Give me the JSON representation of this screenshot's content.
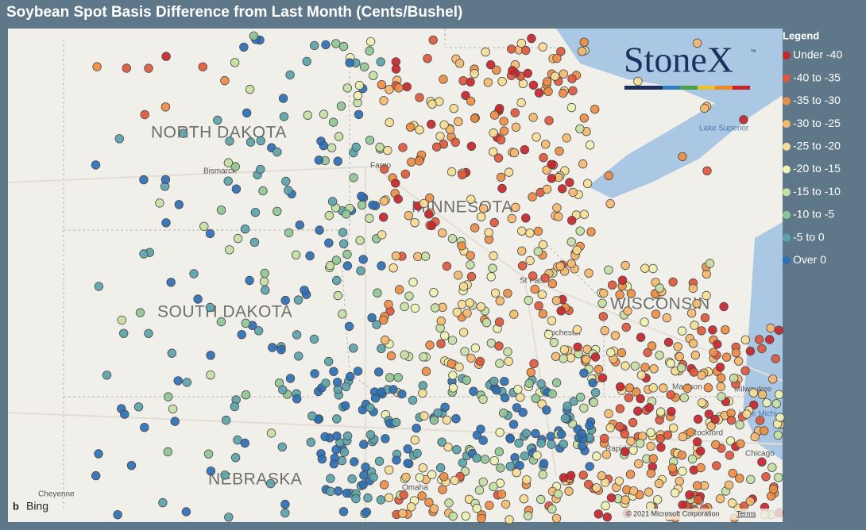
{
  "header": {
    "title": "Soybean Spot Basis Difference from Last Month (Cents/Bushel)"
  },
  "legend": {
    "title": "Legend",
    "items": [
      {
        "label": "Under -40",
        "color": "#c9242b"
      },
      {
        "label": "-40 to -35",
        "color": "#e0573b"
      },
      {
        "label": "-35 to -30",
        "color": "#ee8d43"
      },
      {
        "label": "-30 to -25",
        "color": "#f5b86e"
      },
      {
        "label": "-25 to -20",
        "color": "#f6dc94"
      },
      {
        "label": "-20 to -15",
        "color": "#eef1b0"
      },
      {
        "label": "-15 to -10",
        "color": "#c6e0a2"
      },
      {
        "label": "-10 to -5",
        "color": "#8fc594"
      },
      {
        "label": "-5 to 0",
        "color": "#5ba3aa"
      },
      {
        "label": "Over 0",
        "color": "#2b6fb5"
      }
    ]
  },
  "map": {
    "labels": [
      "NORTH DAKOTA",
      "SOUTH DAKOTA",
      "MINNESOTA",
      "WISCONSIN",
      "NEBRASKA",
      "Bismarck",
      "Fargo",
      "St Paul",
      "Rochester",
      "Madison",
      "Milwaukee",
      "Lake Superior",
      "Lake Michi",
      "Chicago",
      "Rockford",
      "Rapids",
      "Omaha",
      "Cheyenne"
    ]
  },
  "logo": {
    "text": "StoneX",
    "mark": "™"
  },
  "attribution": {
    "provider": "Bing",
    "copyright": "© 2021 Microsoft Corporation",
    "terms": "Terms"
  }
}
